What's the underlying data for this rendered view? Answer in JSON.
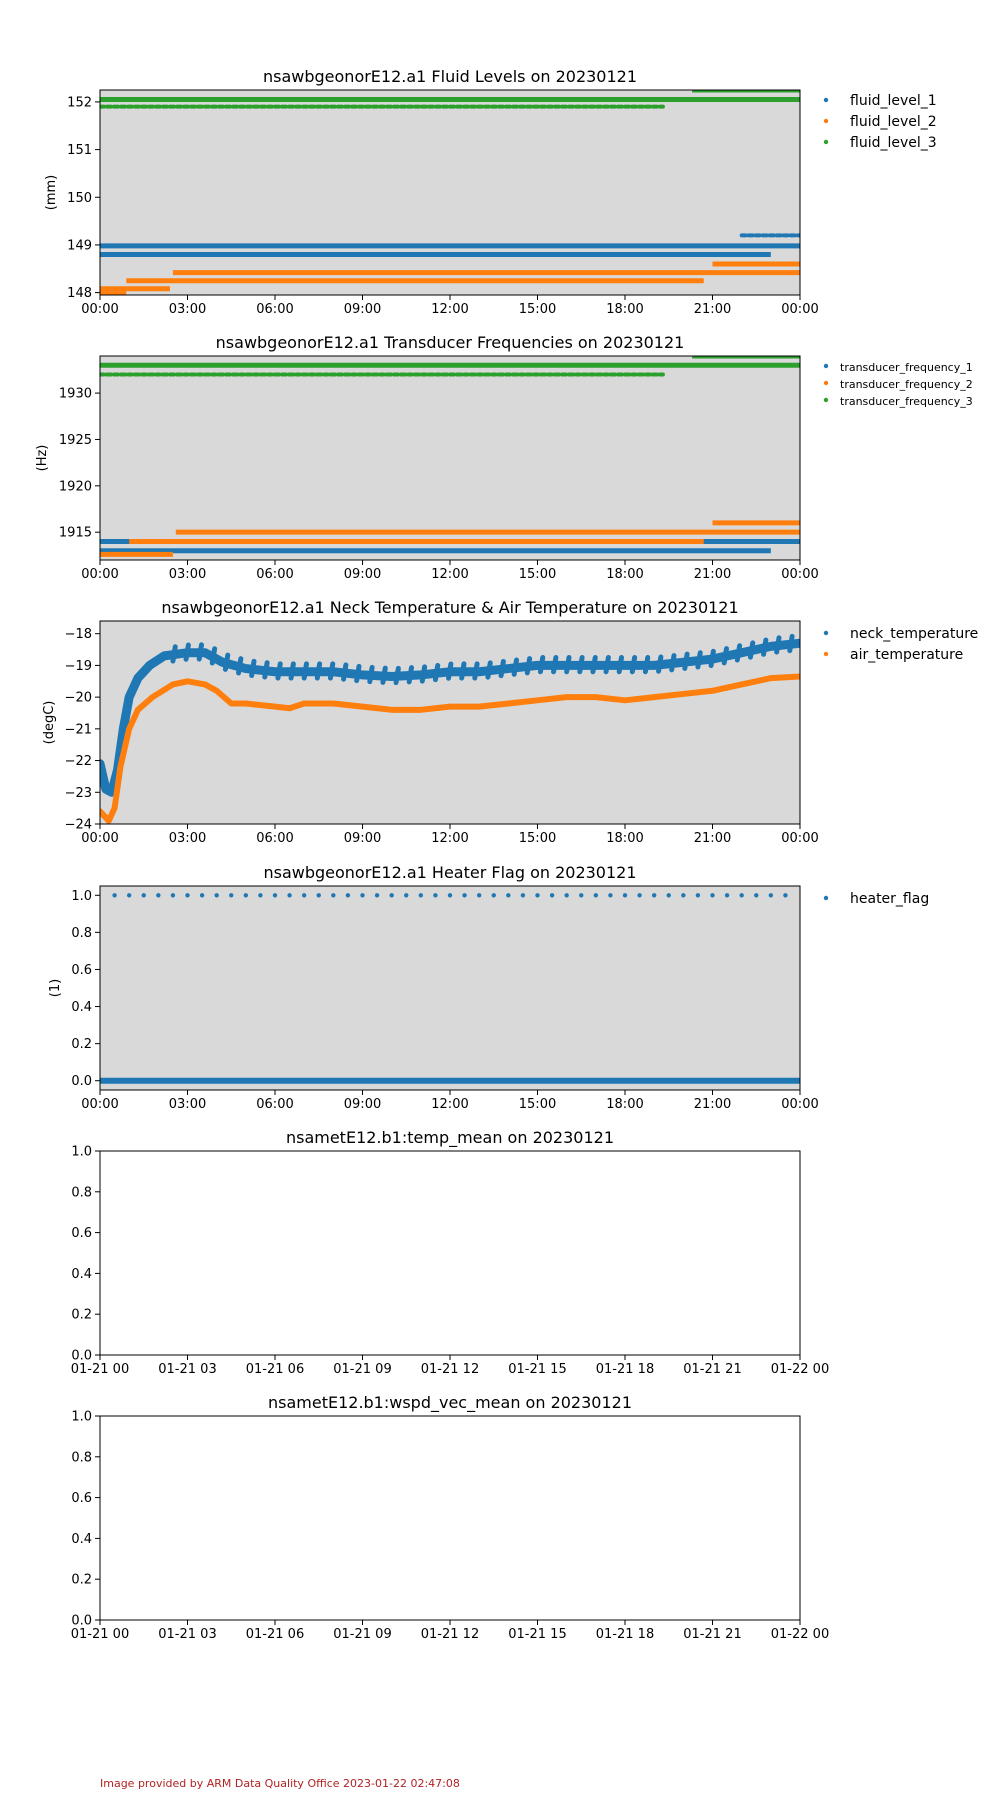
{
  "footer": "Image provided by ARM Data Quality Office 2023-01-22 02:47:08",
  "colors": {
    "c1": "#1f77b4",
    "c2": "#ff7f0e",
    "c3": "#2ca02c",
    "panel_bg": "#d9d9d9",
    "footer": "#b22222"
  },
  "chart_data": [
    {
      "type": "scatter",
      "title": "nsawbgeonorE12.a1 Fluid Levels on 20230121",
      "ylabel": "(mm)",
      "xlabel": "",
      "xlim": [
        0,
        24
      ],
      "ylim": [
        147.95,
        152.25
      ],
      "x_ticks": [
        0,
        3,
        6,
        9,
        12,
        15,
        18,
        21,
        24
      ],
      "x_tick_labels": [
        "00:00",
        "03:00",
        "06:00",
        "09:00",
        "12:00",
        "15:00",
        "18:00",
        "21:00",
        "00:00"
      ],
      "y_ticks": [
        148,
        149,
        150,
        151,
        152
      ],
      "y_tick_labels": [
        "148",
        "149",
        "150",
        "151",
        "152"
      ],
      "background": "grey",
      "legend": "outside-right",
      "series": [
        {
          "name": "fluid_level_1",
          "color": "#1f77b4",
          "segments": [
            {
              "x": [
                0,
                24
              ],
              "y": 148.98,
              "style": "band"
            },
            {
              "x": [
                0,
                23
              ],
              "y": 148.8,
              "style": "band"
            },
            {
              "x": [
                22,
                24
              ],
              "y": 149.2,
              "style": "dots"
            }
          ]
        },
        {
          "name": "fluid_level_2",
          "color": "#ff7f0e",
          "segments": [
            {
              "x": [
                0,
                2.4
              ],
              "y": 148.08,
              "style": "band"
            },
            {
              "x": [
                0,
                0.9
              ],
              "y": 147.98,
              "style": "band"
            },
            {
              "x": [
                0.9,
                20.7
              ],
              "y": 148.25,
              "style": "band"
            },
            {
              "x": [
                2.5,
                24
              ],
              "y": 148.42,
              "style": "band"
            },
            {
              "x": [
                21,
                24
              ],
              "y": 148.6,
              "style": "band"
            }
          ]
        },
        {
          "name": "fluid_level_3",
          "color": "#2ca02c",
          "segments": [
            {
              "x": [
                0,
                24
              ],
              "y": 152.05,
              "style": "band"
            },
            {
              "x": [
                0,
                19.3
              ],
              "y": 151.9,
              "style": "dots"
            },
            {
              "x": [
                20.3,
                24
              ],
              "y": 152.25,
              "style": "band"
            }
          ]
        }
      ]
    },
    {
      "type": "scatter",
      "title": "nsawbgeonorE12.a1 Transducer Frequencies on 20230121",
      "ylabel": "(Hz)",
      "xlabel": "",
      "xlim": [
        0,
        24
      ],
      "ylim": [
        1912,
        1934
      ],
      "x_ticks": [
        0,
        3,
        6,
        9,
        12,
        15,
        18,
        21,
        24
      ],
      "x_tick_labels": [
        "00:00",
        "03:00",
        "06:00",
        "09:00",
        "12:00",
        "15:00",
        "18:00",
        "21:00",
        "00:00"
      ],
      "y_ticks": [
        1915,
        1920,
        1925,
        1930
      ],
      "y_tick_labels": [
        "1915",
        "1920",
        "1925",
        "1930"
      ],
      "background": "grey",
      "legend": "outside-right",
      "series": [
        {
          "name": "transducer_frequency_1",
          "color": "#1f77b4",
          "segments": [
            {
              "x": [
                0,
                24
              ],
              "y": 1914.0,
              "style": "band"
            },
            {
              "x": [
                0,
                23
              ],
              "y": 1913.0,
              "style": "band"
            }
          ]
        },
        {
          "name": "transducer_frequency_2",
          "color": "#ff7f0e",
          "segments": [
            {
              "x": [
                1,
                20.7
              ],
              "y": 1914.0,
              "style": "band"
            },
            {
              "x": [
                2.6,
                24
              ],
              "y": 1915.0,
              "style": "band"
            },
            {
              "x": [
                21,
                24
              ],
              "y": 1916.0,
              "style": "band"
            },
            {
              "x": [
                0,
                2.5
              ],
              "y": 1912.6,
              "style": "band"
            }
          ]
        },
        {
          "name": "transducer_frequency_3",
          "color": "#2ca02c",
          "segments": [
            {
              "x": [
                0,
                24
              ],
              "y": 1933.0,
              "style": "band"
            },
            {
              "x": [
                0,
                19.3
              ],
              "y": 1932.0,
              "style": "dots"
            },
            {
              "x": [
                20.3,
                24
              ],
              "y": 1934.0,
              "style": "band"
            }
          ]
        }
      ]
    },
    {
      "type": "scatter",
      "title": "nsawbgeonorE12.a1 Neck Temperature & Air Temperature on 20230121",
      "ylabel": "(degC)",
      "xlabel": "",
      "xlim": [
        0,
        24
      ],
      "ylim": [
        -24,
        -17.6
      ],
      "x_ticks": [
        0,
        3,
        6,
        9,
        12,
        15,
        18,
        21,
        24
      ],
      "x_tick_labels": [
        "00:00",
        "03:00",
        "06:00",
        "09:00",
        "12:00",
        "15:00",
        "18:00",
        "21:00",
        "00:00"
      ],
      "y_ticks": [
        -24,
        -23,
        -22,
        -21,
        -20,
        -19,
        -18
      ],
      "y_tick_labels": [
        "−24",
        "−23",
        "−22",
        "−21",
        "−20",
        "−19",
        "−18"
      ],
      "background": "grey",
      "legend": "outside-right",
      "series": [
        {
          "name": "neck_temperature",
          "color": "#1f77b4",
          "x": [
            0,
            0.2,
            0.4,
            0.6,
            0.8,
            1.0,
            1.3,
            1.7,
            2.2,
            3.0,
            3.6,
            4.2,
            4.6,
            5.0,
            6.0,
            7.0,
            8.0,
            9.0,
            10.0,
            11.0,
            12.0,
            13.0,
            14.0,
            15.0,
            16.0,
            17.0,
            18.0,
            19.0,
            20.0,
            21.0,
            22.0,
            23.0,
            24.0
          ],
          "y": [
            -22.1,
            -22.9,
            -23.0,
            -22.3,
            -21.0,
            -20.0,
            -19.4,
            -19.0,
            -18.7,
            -18.6,
            -18.6,
            -18.9,
            -19.0,
            -19.1,
            -19.2,
            -19.2,
            -19.2,
            -19.3,
            -19.35,
            -19.3,
            -19.2,
            -19.2,
            -19.1,
            -19.0,
            -19.0,
            -19.0,
            -19.0,
            -19.0,
            -18.9,
            -18.8,
            -18.6,
            -18.4,
            -18.3
          ]
        },
        {
          "name": "air_temperature",
          "color": "#ff7f0e",
          "x": [
            0,
            0.3,
            0.5,
            0.7,
            1.0,
            1.3,
            1.8,
            2.5,
            3.0,
            3.6,
            4.0,
            4.5,
            5.0,
            6.0,
            6.5,
            7.0,
            8.0,
            9.0,
            10.0,
            11.0,
            12.0,
            13.0,
            14.0,
            15.0,
            16.0,
            17.0,
            18.0,
            19.0,
            20.0,
            21.0,
            22.0,
            23.0,
            24.0
          ],
          "y": [
            -23.6,
            -23.9,
            -23.5,
            -22.2,
            -21.0,
            -20.4,
            -20.0,
            -19.6,
            -19.5,
            -19.6,
            -19.8,
            -20.2,
            -20.2,
            -20.3,
            -20.35,
            -20.2,
            -20.2,
            -20.3,
            -20.4,
            -20.4,
            -20.3,
            -20.3,
            -20.2,
            -20.1,
            -20.0,
            -20.0,
            -20.1,
            -20.0,
            -19.9,
            -19.8,
            -19.6,
            -19.4,
            -19.35
          ]
        }
      ]
    },
    {
      "type": "scatter",
      "title": "nsawbgeonorE12.a1 Heater Flag on 20230121",
      "ylabel": "(1)",
      "xlabel": "",
      "xlim": [
        0,
        24
      ],
      "ylim": [
        -0.05,
        1.05
      ],
      "x_ticks": [
        0,
        3,
        6,
        9,
        12,
        15,
        18,
        21,
        24
      ],
      "x_tick_labels": [
        "00:00",
        "03:00",
        "06:00",
        "09:00",
        "12:00",
        "15:00",
        "18:00",
        "21:00",
        "00:00"
      ],
      "y_ticks": [
        0.0,
        0.2,
        0.4,
        0.6,
        0.8,
        1.0
      ],
      "y_tick_labels": [
        "0.0",
        "0.2",
        "0.4",
        "0.6",
        "0.8",
        "1.0"
      ],
      "background": "grey",
      "legend": "outside-right",
      "series": [
        {
          "name": "heater_flag",
          "color": "#1f77b4",
          "band_y": 0,
          "points_y": 1,
          "points_x_start": 0.5,
          "points_x_step": 0.5,
          "points_count": 47
        }
      ]
    },
    {
      "type": "scatter",
      "title": "nsametE12.b1:temp_mean on 20230121",
      "ylabel": "",
      "xlabel": "",
      "xlim": [
        0,
        24
      ],
      "ylim": [
        0,
        1
      ],
      "x_ticks": [
        0,
        3,
        6,
        9,
        12,
        15,
        18,
        21,
        24
      ],
      "x_tick_labels": [
        "01-21 00",
        "01-21 03",
        "01-21 06",
        "01-21 09",
        "01-21 12",
        "01-21 15",
        "01-21 18",
        "01-21 21",
        "01-22 00"
      ],
      "y_ticks": [
        0.0,
        0.2,
        0.4,
        0.6,
        0.8,
        1.0
      ],
      "y_tick_labels": [
        "0.0",
        "0.2",
        "0.4",
        "0.6",
        "0.8",
        "1.0"
      ],
      "background": "white",
      "series": []
    },
    {
      "type": "scatter",
      "title": "nsametE12.b1:wspd_vec_mean on 20230121",
      "ylabel": "",
      "xlabel": "",
      "xlim": [
        0,
        24
      ],
      "ylim": [
        0,
        1
      ],
      "x_ticks": [
        0,
        3,
        6,
        9,
        12,
        15,
        18,
        21,
        24
      ],
      "x_tick_labels": [
        "01-21 00",
        "01-21 03",
        "01-21 06",
        "01-21 09",
        "01-21 12",
        "01-21 15",
        "01-21 18",
        "01-21 21",
        "01-22 00"
      ],
      "y_ticks": [
        0.0,
        0.2,
        0.4,
        0.6,
        0.8,
        1.0
      ],
      "y_tick_labels": [
        "0.0",
        "0.2",
        "0.4",
        "0.6",
        "0.8",
        "1.0"
      ],
      "background": "white",
      "series": []
    }
  ]
}
